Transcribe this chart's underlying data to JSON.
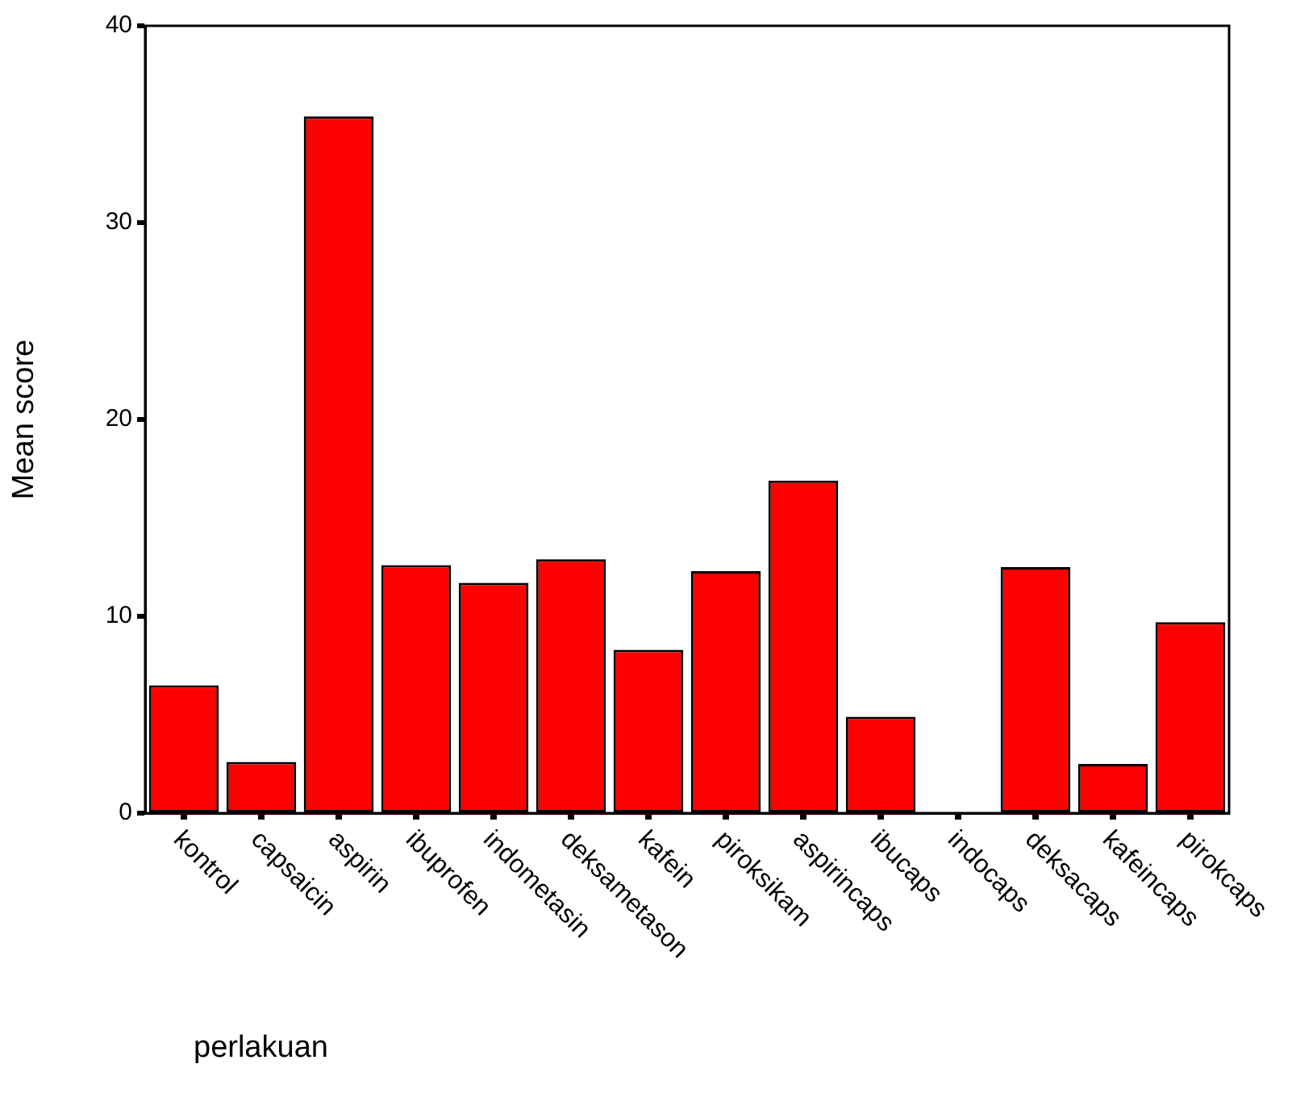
{
  "chart_data": {
    "type": "bar",
    "xlabel": "perlakuan",
    "ylabel": "Mean score",
    "categories": [
      "kontrol",
      "capsaicin",
      "aspirin",
      "ibuprofen",
      "indometasin",
      "deksametason",
      "kafein",
      "piroksikam",
      "aspirincaps",
      "ibucaps",
      "indocaps",
      "deksacaps",
      "kafeincaps",
      "pirokcaps"
    ],
    "values": [
      6.5,
      2.6,
      35.4,
      12.6,
      11.7,
      12.9,
      8.3,
      12.3,
      16.9,
      4.9,
      0,
      12.5,
      2.5,
      9.7
    ],
    "color": "#ff0000",
    "ylim": [
      0,
      40
    ],
    "yticks": [
      0,
      10,
      20,
      30,
      40
    ],
    "grid": false,
    "legend": false
  }
}
